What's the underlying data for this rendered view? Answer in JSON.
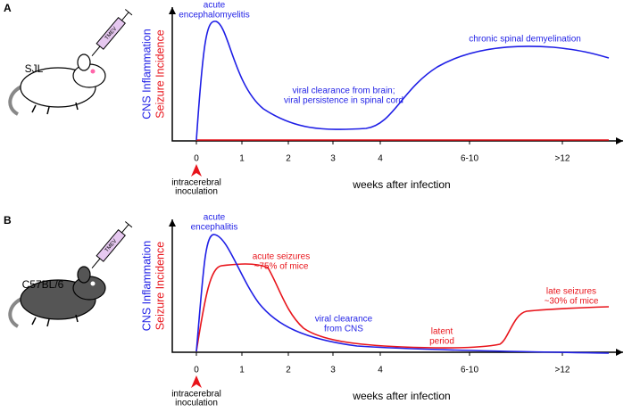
{
  "panels": [
    {
      "label": "A",
      "strain": "SJL",
      "syringe_label": "TMEV",
      "y_label_inflammation": "CNS Inflammation",
      "y_label_seizure": "Seizure Incidence",
      "x_ticks": [
        "0",
        "1",
        "2",
        "3",
        "4",
        "6-10",
        ">12"
      ],
      "x_label": "weeks after infection",
      "inoculation": [
        "intracerebral",
        "inoculation"
      ],
      "annotations": [
        {
          "lines": [
            "acute",
            "encephalomyelitis"
          ]
        },
        {
          "lines": [
            "viral clearance from brain;",
            "viral persistence in spinal cord"
          ]
        },
        {
          "lines": [
            "chronic spinal demyelination"
          ]
        }
      ]
    },
    {
      "label": "B",
      "strain": "C57BL/6",
      "syringe_label": "TMEV",
      "y_label_inflammation": "CNS Inflammation",
      "y_label_seizure": "Seizure Incidence",
      "x_ticks": [
        "0",
        "1",
        "2",
        "3",
        "4",
        "6-10",
        ">12"
      ],
      "x_label": "weeks after infection",
      "inoculation": [
        "intracerebral",
        "inoculation"
      ],
      "annotations": [
        {
          "lines": [
            "acute",
            "encephalitis"
          ]
        },
        {
          "lines": [
            "acute seizures",
            "~75% of mice"
          ]
        },
        {
          "lines": [
            "viral clearance",
            "from CNS"
          ]
        },
        {
          "lines": [
            "latent",
            "period"
          ]
        },
        {
          "lines": [
            "late seizures",
            "~30% of mice"
          ]
        }
      ]
    }
  ]
}
